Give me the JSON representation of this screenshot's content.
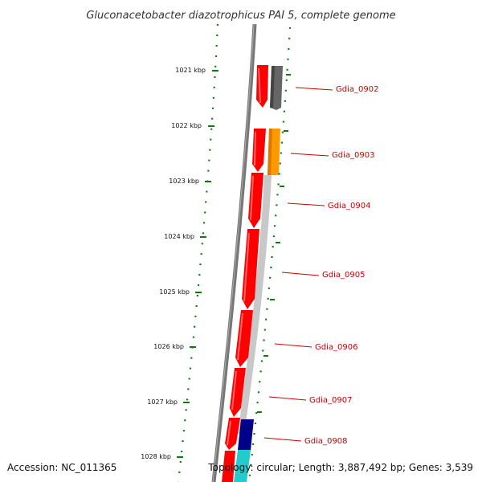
{
  "title": "Gluconacetobacter diazotrophicus PAI 5, complete genome",
  "accession": "Accession: NC_011365",
  "topology": "Topology: circular; Length: 3,887,492 bp; Genes: 3,539",
  "colors": {
    "backbone": "#777777",
    "gc_dots": "#117711",
    "forward_gene": "#ff0000",
    "reverse_gray": "#666666",
    "reverse_light": "#c8c8c8",
    "reverse_orange": "#ff9900",
    "reverse_navy": "#000088",
    "reverse_cyan": "#22cccc",
    "label": "#cc0000"
  },
  "ticks": [
    "1021 kbp",
    "1022 kbp",
    "1023 kbp",
    "1024 kbp",
    "1025 kbp",
    "1026 kbp",
    "1027 kbp",
    "1028 kbp"
  ],
  "gene_labels": [
    "Gdia_0902",
    "Gdia_0903",
    "Gdia_0904",
    "Gdia_0905",
    "Gdia_0906",
    "Gdia_0907",
    "Gdia_0908"
  ]
}
